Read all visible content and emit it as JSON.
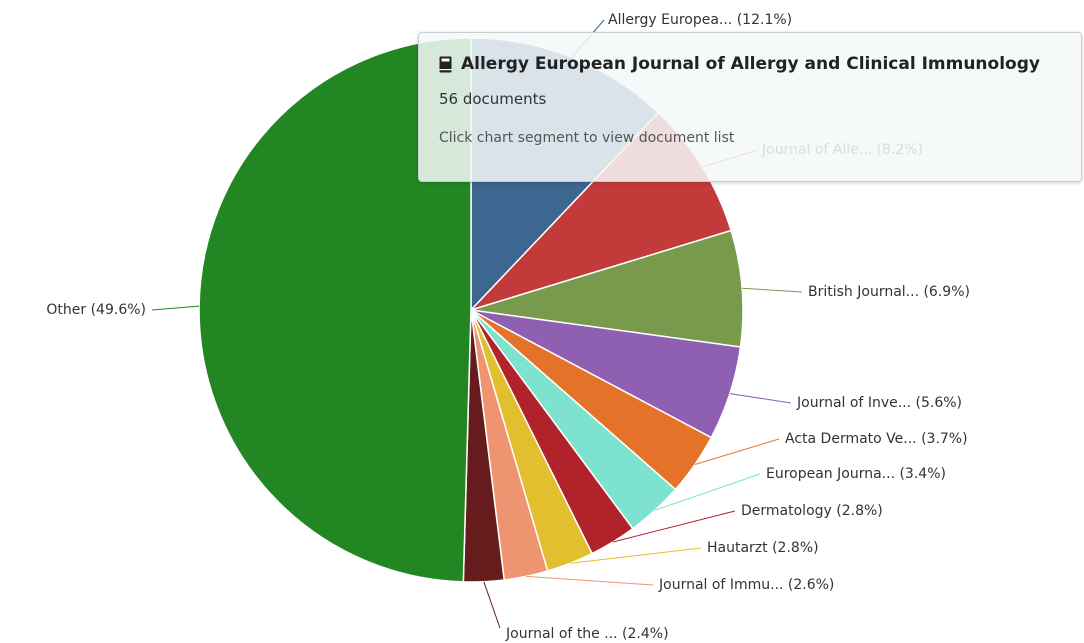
{
  "chart_data": {
    "type": "pie",
    "slices": [
      {
        "label": "Allergy Europea... (12.1%)",
        "value": 12.1,
        "color": "#3d6690"
      },
      {
        "label": "Journal of Alle... (8.2%)",
        "value": 8.2,
        "color": "#c23a3a"
      },
      {
        "label": "British Journal... (6.9%)",
        "value": 6.9,
        "color": "#789a4c"
      },
      {
        "label": "Journal of Inve... (5.6%)",
        "value": 5.6,
        "color": "#8f5fb2"
      },
      {
        "label": "Acta Dermato Ve... (3.7%)",
        "value": 3.7,
        "color": "#e47228"
      },
      {
        "label": "European Journa... (3.4%)",
        "value": 3.4,
        "color": "#7de3cf"
      },
      {
        "label": "Dermatology (2.8%)",
        "value": 2.8,
        "color": "#b0232b"
      },
      {
        "label": "Hautarzt (2.8%)",
        "value": 2.8,
        "color": "#e2bf2e"
      },
      {
        "label": "Journal of Immu... (2.6%)",
        "value": 2.6,
        "color": "#ef9470"
      },
      {
        "label": "Journal of the ... (2.4%)",
        "value": 2.4,
        "color": "#661c1c"
      },
      {
        "label": "Other (49.6%)",
        "value": 49.6,
        "color": "#228722"
      }
    ]
  },
  "tooltip": {
    "icon": "book-icon",
    "title": "Allergy European Journal of Allergy and Clinical Immunology",
    "count": "56 documents",
    "hint": "Click chart segment to view document list"
  }
}
